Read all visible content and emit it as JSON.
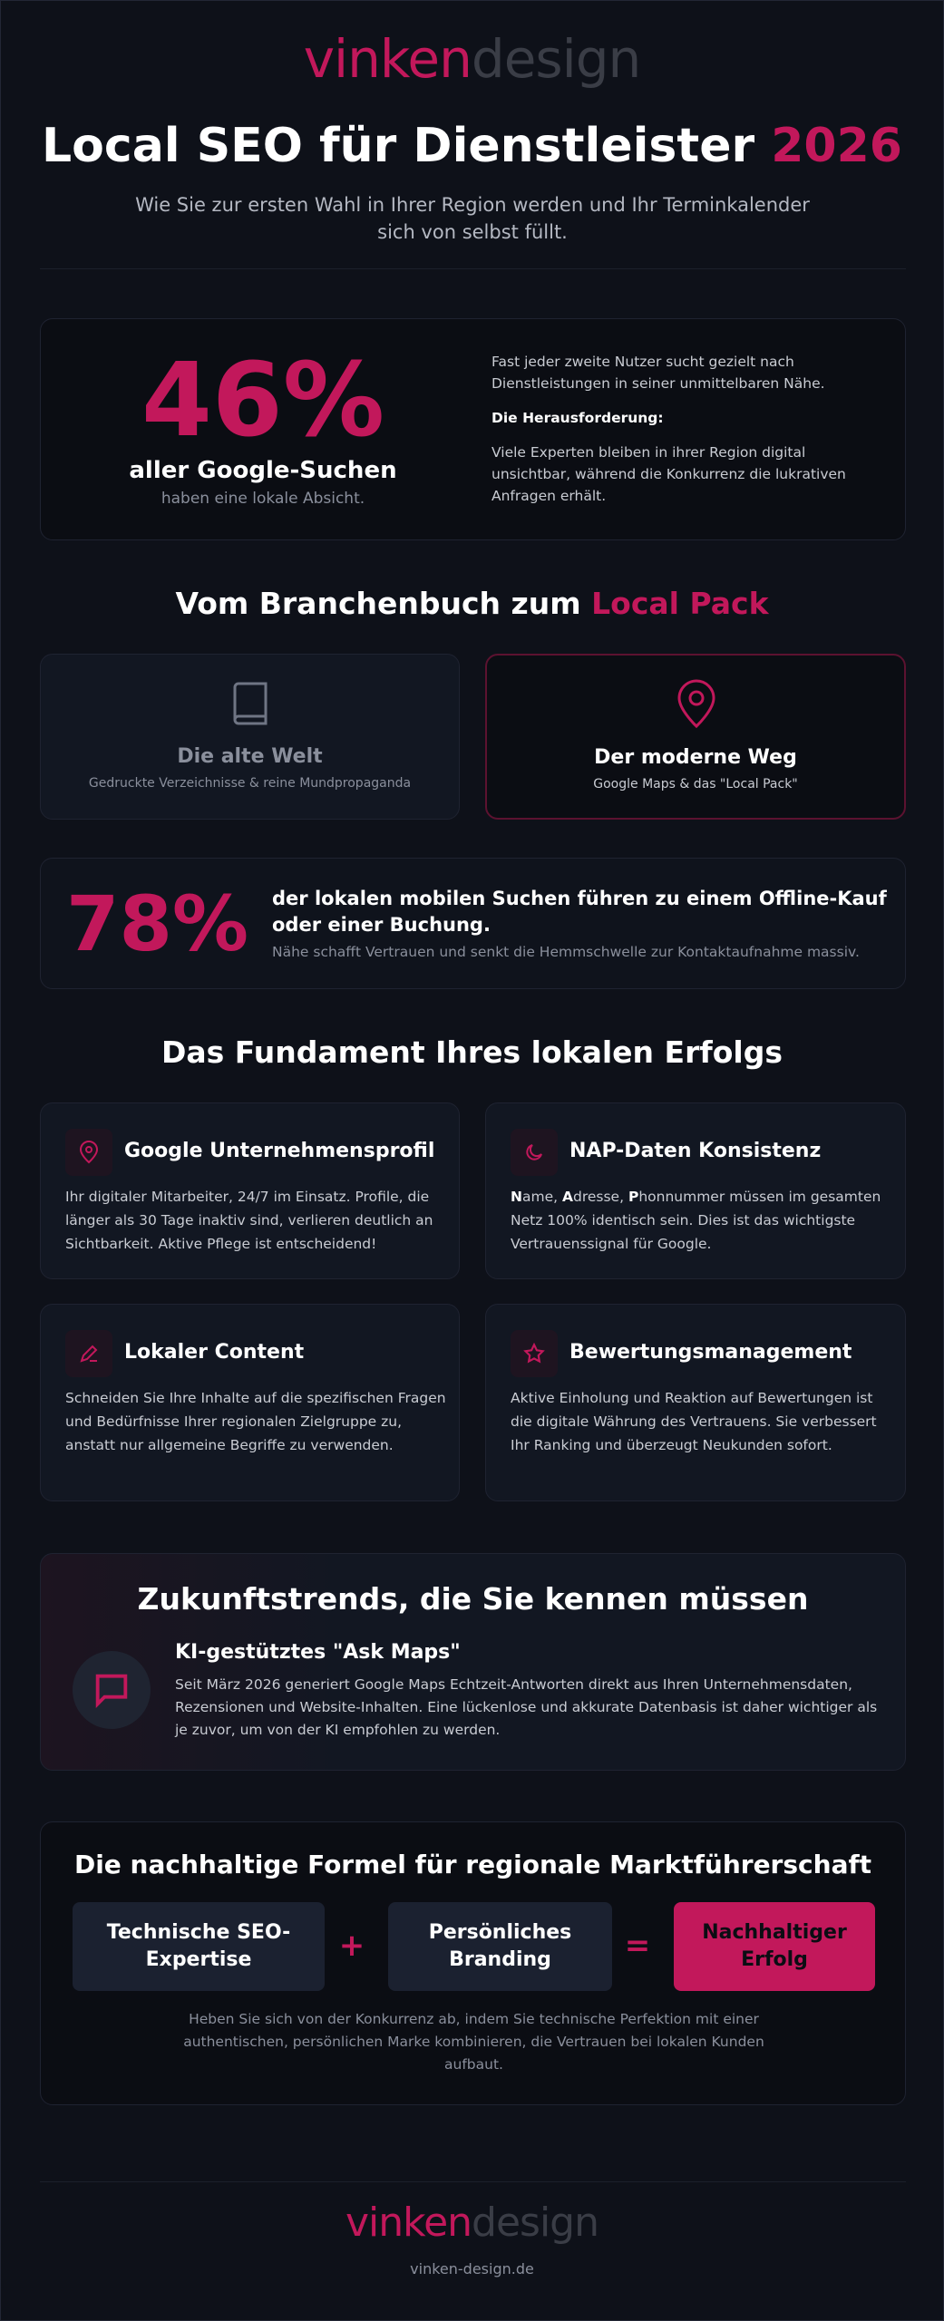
{
  "header": {
    "logo_part1": "vinken",
    "logo_part2": "design",
    "title_main": "Local SEO für Dienstleister",
    "title_year": "2026",
    "subtitle": "Wie Sie zur ersten Wahl in Ihrer Region werden und Ihr Terminkalender sich von selbst füllt."
  },
  "stat1": {
    "value": "46%",
    "label": "aller Google-Suchen",
    "sub": "haben eine lokale Absicht.",
    "text1": "Fast jeder zweite Nutzer sucht gezielt nach Dienstleistungen in seiner unmittelbaren Nähe.",
    "challenge_title": "Die Herausforderung:",
    "text2": "Viele Experten bleiben in ihrer Region digital unsichtbar, während die Konkurrenz die lukrativen Anfragen erhält."
  },
  "section2": {
    "title_main": "Vom Branchenbuch zum",
    "title_accent": "Local Pack",
    "old": {
      "icon": "book-icon",
      "title": "Die alte Welt",
      "sub": "Gedruckte Verzeichnisse & reine Mundpropaganda"
    },
    "new": {
      "icon": "map-pin-icon",
      "title": "Der moderne Weg",
      "sub": "Google Maps & das \"Local Pack\""
    }
  },
  "stat2": {
    "value": "78%",
    "text": "der lokalen mobilen Suchen führen zu einem Offline-Kauf oder einer Buchung.",
    "sub": "Nähe schafft Vertrauen und senkt die Hemmschwelle zur Kontaktaufnahme massiv."
  },
  "section3": {
    "title": "Das Fundament Ihres lokalen Erfolgs",
    "features": [
      {
        "icon": "map-pin-icon",
        "title": "Google Unternehmensprofil",
        "body": "Ihr digitaler Mitarbeiter, 24/7 im Einsatz. Profile, die länger als 30 Tage inaktiv sind, verlieren deutlich an Sichtbarkeit. Aktive Pflege ist entscheidend!"
      },
      {
        "icon": "moon-icon",
        "title": "NAP-Daten Konsistenz",
        "body_n": "N",
        "body_1": "ame, ",
        "body_a": "A",
        "body_2": "dresse, ",
        "body_p": "P",
        "body_3": "honnummer müssen im gesamten Netz 100% identisch sein. Dies ist das wichtigste Vertrauenssignal für Google."
      },
      {
        "icon": "pencil-icon",
        "title": "Lokaler Content",
        "body": "Schneiden Sie Ihre Inhalte auf die spezifischen Fragen und Bedürfnisse Ihrer regionalen Zielgruppe zu, anstatt nur allgemeine Begriffe zu verwenden."
      },
      {
        "icon": "star-icon",
        "title": "Bewertungsmanagement",
        "body": "Aktive Einholung und Reaktion auf Bewertungen ist die digitale Währung des Vertrauens. Sie verbessert Ihr Ranking und überzeugt Neukunden sofort."
      }
    ]
  },
  "section4": {
    "title": "Zukunftstrends, die Sie kennen müssen",
    "icon": "chat-icon",
    "item_title": "KI-gestütztes \"Ask Maps\"",
    "item_body": "Seit März 2026 generiert Google Maps Echtzeit-Antworten direkt aus Ihren Unternehmensdaten, Rezensionen und Website-Inhalten. Eine lückenlose und akkurate Datenbasis ist daher wichtiger als je zuvor, um von der KI empfohlen zu werden."
  },
  "section5": {
    "title": "Die nachhaltige Formel für regionale Marktführerschaft",
    "box1": "Technische SEO-Expertise",
    "plus": "+",
    "box2": "Persönliches Branding",
    "equals": "=",
    "box3": "Nachhaltiger Erfolg",
    "body": "Heben Sie sich von der Konkurrenz ab, indem Sie technische Perfektion mit einer authentischen, persönlichen Marke kombinieren, die Vertrauen bei lokalen Kunden aufbaut."
  },
  "footer": {
    "logo_part1": "vinken",
    "logo_part2": "design",
    "url": "vinken-design.de"
  },
  "colors": {
    "accent": "#c2185b",
    "background": "#0e1119",
    "card": "#121722"
  }
}
